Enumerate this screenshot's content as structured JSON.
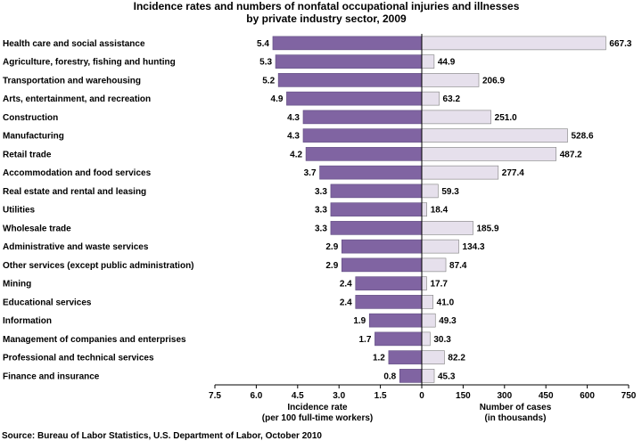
{
  "chart_data": {
    "type": "bar",
    "orientation": "horizontal-butterfly",
    "title": [
      "Incidence rates and numbers of nonfatal occupational injuries and illnesses",
      "by private industry sector, 2009"
    ],
    "categories": [
      "Health care and social assistance",
      "Agriculture, forestry, fishing and hunting",
      "Transportation and warehousing",
      "Arts, entertainment, and recreation",
      "Construction",
      "Manufacturing",
      "Retail trade",
      "Accommodation and food services",
      "Real estate and rental and leasing",
      "Utilities",
      "Wholesale trade",
      "Administrative and waste services",
      "Other services (except public administration)",
      "Mining",
      "Educational services",
      "Information",
      "Management of companies and enterprises",
      "Professional and technical services",
      "Finance and insurance"
    ],
    "series": [
      {
        "values": [
          5.4,
          5.3,
          5.2,
          4.9,
          4.3,
          4.3,
          4.2,
          3.7,
          3.3,
          3.3,
          3.3,
          2.9,
          2.9,
          2.4,
          2.4,
          1.9,
          1.7,
          1.2,
          0.8
        ],
        "labels": [
          "5.4",
          "5.3",
          "5.2",
          "4.9",
          "4.3",
          "4.3",
          "4.2",
          "3.7",
          "3.3",
          "3.3",
          "3.3",
          "2.9",
          "2.9",
          "2.4",
          "2.4",
          "1.9",
          "1.7",
          "1.2",
          "0.8"
        ],
        "color": "#8064a2",
        "xlim": [
          7.5,
          0
        ],
        "ticks": [
          "7.5",
          "6.0",
          "4.5",
          "3.0",
          "1.5",
          "0"
        ],
        "xlabel": [
          "Incidence rate",
          "(per 100 full-time workers)"
        ]
      },
      {
        "values": [
          667.3,
          44.9,
          206.9,
          63.2,
          251.0,
          528.6,
          487.2,
          277.4,
          59.3,
          18.4,
          185.9,
          134.3,
          87.4,
          17.7,
          41.0,
          49.3,
          30.3,
          82.2,
          45.3
        ],
        "labels": [
          "667.3",
          "44.9",
          "206.9",
          "63.2",
          "251.0",
          "528.6",
          "487.2",
          "277.4",
          "59.3",
          "18.4",
          "185.9",
          "134.3",
          "87.4",
          "17.7",
          "41.0",
          "49.3",
          "30.3",
          "82.2",
          "45.3"
        ],
        "color": "#e6e0ec",
        "xlim": [
          0,
          750
        ],
        "ticks": [
          "0",
          "150",
          "300",
          "450",
          "600",
          "750"
        ],
        "xlabel": [
          "Number of cases",
          "(in thousands)"
        ]
      }
    ],
    "source": "Source:  Bureau of Labor Statistics, U.S. Department of Labor, October 2010"
  }
}
